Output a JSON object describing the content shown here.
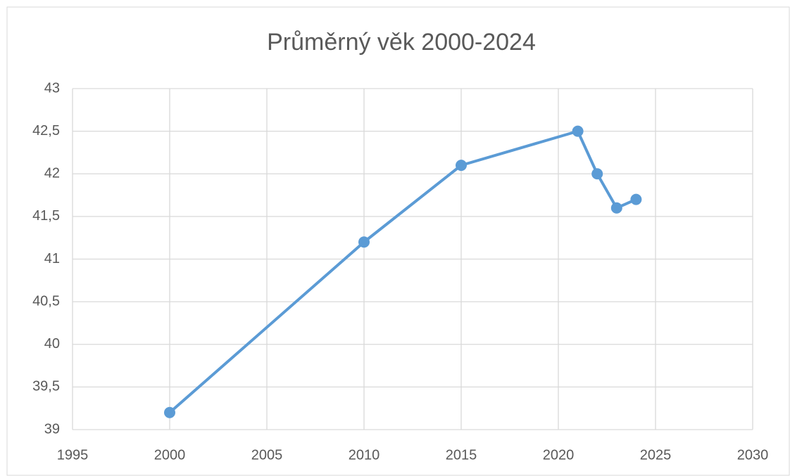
{
  "chart_data": {
    "type": "line",
    "title": "Průměrný věk 2000-2024",
    "x": [
      2000,
      2010,
      2015,
      2021,
      2022,
      2023,
      2024
    ],
    "series": [
      {
        "name": "Průměrný věk",
        "color": "#5b9bd5",
        "values": [
          39.2,
          41.2,
          42.1,
          42.5,
          42.0,
          41.6,
          41.7
        ]
      }
    ],
    "xlim": [
      1995,
      2030
    ],
    "xticks": [
      1995,
      2000,
      2005,
      2010,
      2015,
      2020,
      2025,
      2030
    ],
    "ylim": [
      39,
      43
    ],
    "yticks": [
      39,
      {
        "value": 39.5,
        "label": "39,5"
      },
      40,
      {
        "value": 40.5,
        "label": "40,5"
      },
      41,
      {
        "value": 41.5,
        "label": "41,5"
      },
      42,
      {
        "value": 42.5,
        "label": "42,5"
      },
      43
    ],
    "grid": true
  }
}
